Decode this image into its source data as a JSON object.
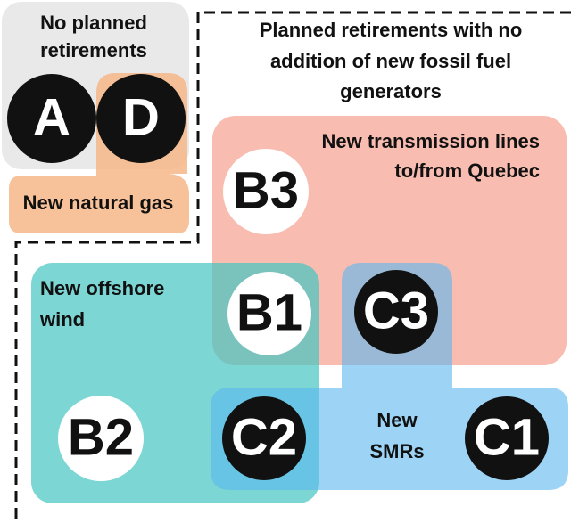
{
  "header": {
    "title": [
      "Planned retirements with no",
      "addition of new fossil fuel",
      "generators"
    ]
  },
  "groups": {
    "no_planned": [
      "No planned",
      "retirements"
    ],
    "natural_gas": [
      "New natural gas"
    ],
    "transmission": [
      "New transmission lines",
      "to/from Quebec"
    ],
    "offshore_wind": [
      "New offshore",
      "wind"
    ],
    "smrs": [
      "New",
      "SMRs"
    ]
  },
  "scenarios": [
    "A",
    "D",
    "B3",
    "B1",
    "B2",
    "C3",
    "C2",
    "C1"
  ]
}
